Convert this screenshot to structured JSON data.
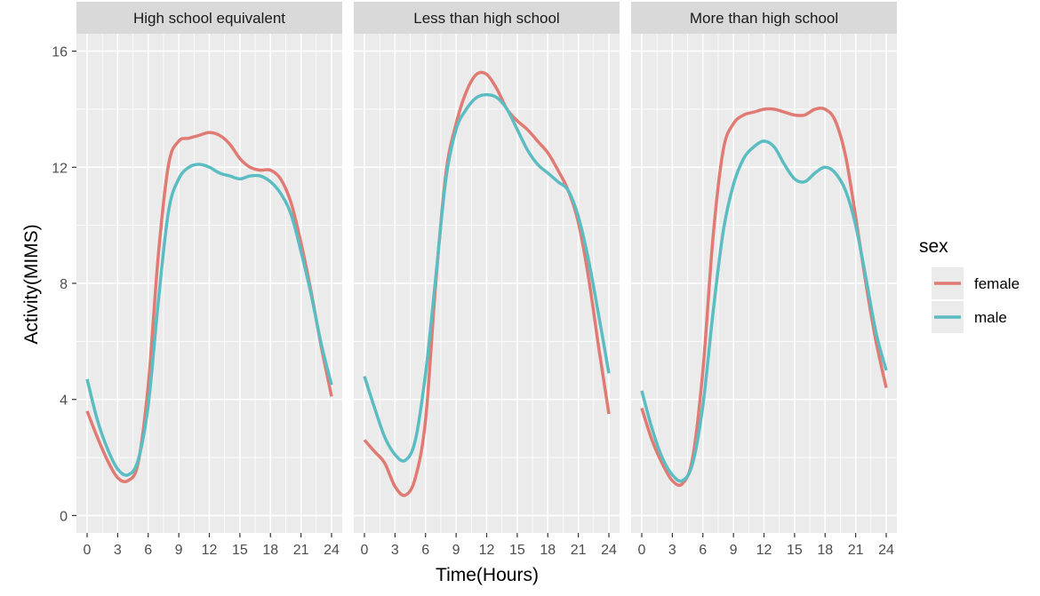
{
  "chart_data": {
    "type": "line",
    "xlabel": "Time(Hours)",
    "ylabel": "Activity(MIMS)",
    "xlim": [
      0,
      24
    ],
    "ylim": [
      0,
      16
    ],
    "x_ticks": [
      0,
      3,
      6,
      9,
      12,
      15,
      18,
      21,
      24
    ],
    "y_ticks": [
      0,
      4,
      8,
      12,
      16
    ],
    "grid": true,
    "legend": {
      "title": "sex",
      "placement": "right",
      "entries": [
        {
          "name": "female",
          "color": "#E07B74"
        },
        {
          "name": "male",
          "color": "#5BBDC2"
        }
      ]
    },
    "x": [
      0,
      1,
      2,
      3,
      4,
      5,
      6,
      7,
      8,
      9,
      10,
      11,
      12,
      13,
      14,
      15,
      16,
      17,
      18,
      19,
      20,
      21,
      22,
      23,
      24
    ],
    "panels": [
      {
        "label": "High school equivalent",
        "series": [
          {
            "name": "female",
            "values": [
              3.6,
              2.7,
              1.9,
              1.3,
              1.2,
              1.8,
              4.5,
              9.0,
              12.1,
              12.9,
              13.0,
              13.1,
              13.2,
              13.1,
              12.8,
              12.3,
              12.0,
              11.9,
              11.9,
              11.6,
              10.8,
              9.4,
              7.7,
              5.8,
              4.1
            ]
          },
          {
            "name": "male",
            "values": [
              4.7,
              3.3,
              2.3,
              1.6,
              1.4,
              1.9,
              3.8,
              7.4,
              10.5,
              11.6,
              12.0,
              12.1,
              12.0,
              11.8,
              11.7,
              11.6,
              11.7,
              11.7,
              11.5,
              11.1,
              10.4,
              9.1,
              7.6,
              5.9,
              4.5
            ]
          }
        ]
      },
      {
        "label": "Less than high school",
        "series": [
          {
            "name": "female",
            "values": [
              2.6,
              2.2,
              1.8,
              1.0,
              0.7,
              1.3,
              3.3,
              8.0,
              11.8,
              13.5,
              14.6,
              15.2,
              15.2,
              14.7,
              14.0,
              13.6,
              13.3,
              12.9,
              12.5,
              11.9,
              11.2,
              10.1,
              8.2,
              5.8,
              3.5
            ]
          },
          {
            "name": "male",
            "values": [
              4.8,
              3.7,
              2.7,
              2.1,
              1.9,
              2.6,
              4.9,
              8.2,
              11.6,
              13.3,
              14.0,
              14.4,
              14.5,
              14.4,
              14.0,
              13.3,
              12.6,
              12.1,
              11.8,
              11.5,
              11.2,
              10.3,
              8.8,
              6.9,
              4.9
            ]
          }
        ]
      },
      {
        "label": "More than high school",
        "series": [
          {
            "name": "female",
            "values": [
              3.7,
              2.6,
              1.8,
              1.2,
              1.1,
              2.0,
              5.0,
              9.6,
              12.6,
              13.5,
              13.8,
              13.9,
              14.0,
              14.0,
              13.9,
              13.8,
              13.8,
              14.0,
              14.0,
              13.6,
              12.4,
              10.3,
              8.0,
              6.0,
              4.4
            ]
          },
          {
            "name": "male",
            "values": [
              4.3,
              3.0,
              2.0,
              1.4,
              1.2,
              1.8,
              3.8,
              7.0,
              9.8,
              11.4,
              12.3,
              12.7,
              12.9,
              12.7,
              12.1,
              11.6,
              11.5,
              11.8,
              12.0,
              11.8,
              11.2,
              10.0,
              8.2,
              6.3,
              5.0
            ]
          }
        ]
      }
    ]
  }
}
